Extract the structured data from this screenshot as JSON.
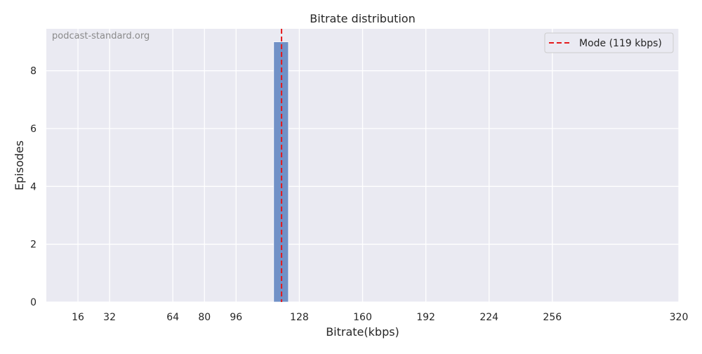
{
  "chart_data": {
    "type": "bar",
    "title": "Bitrate distribution",
    "xlabel": "Bitrate(kbps)",
    "ylabel": "Episodes",
    "watermark": "podcast-standard.org",
    "xlim": [
      0,
      320
    ],
    "ylim": [
      0,
      9.45
    ],
    "x_ticks": [
      16,
      32,
      64,
      80,
      96,
      128,
      160,
      192,
      224,
      256,
      320
    ],
    "y_ticks": [
      0,
      2,
      4,
      6,
      8
    ],
    "bars": [
      {
        "x_start": 115,
        "x_end": 122.5,
        "value": 9
      }
    ],
    "mode_line": {
      "x": 119,
      "label": "Mode (119 kbps)",
      "color": "#e41a1c"
    },
    "bar_color": "#7191c7",
    "grid": true,
    "legend_position": "top-right",
    "background_color": "#eaeaf2"
  }
}
